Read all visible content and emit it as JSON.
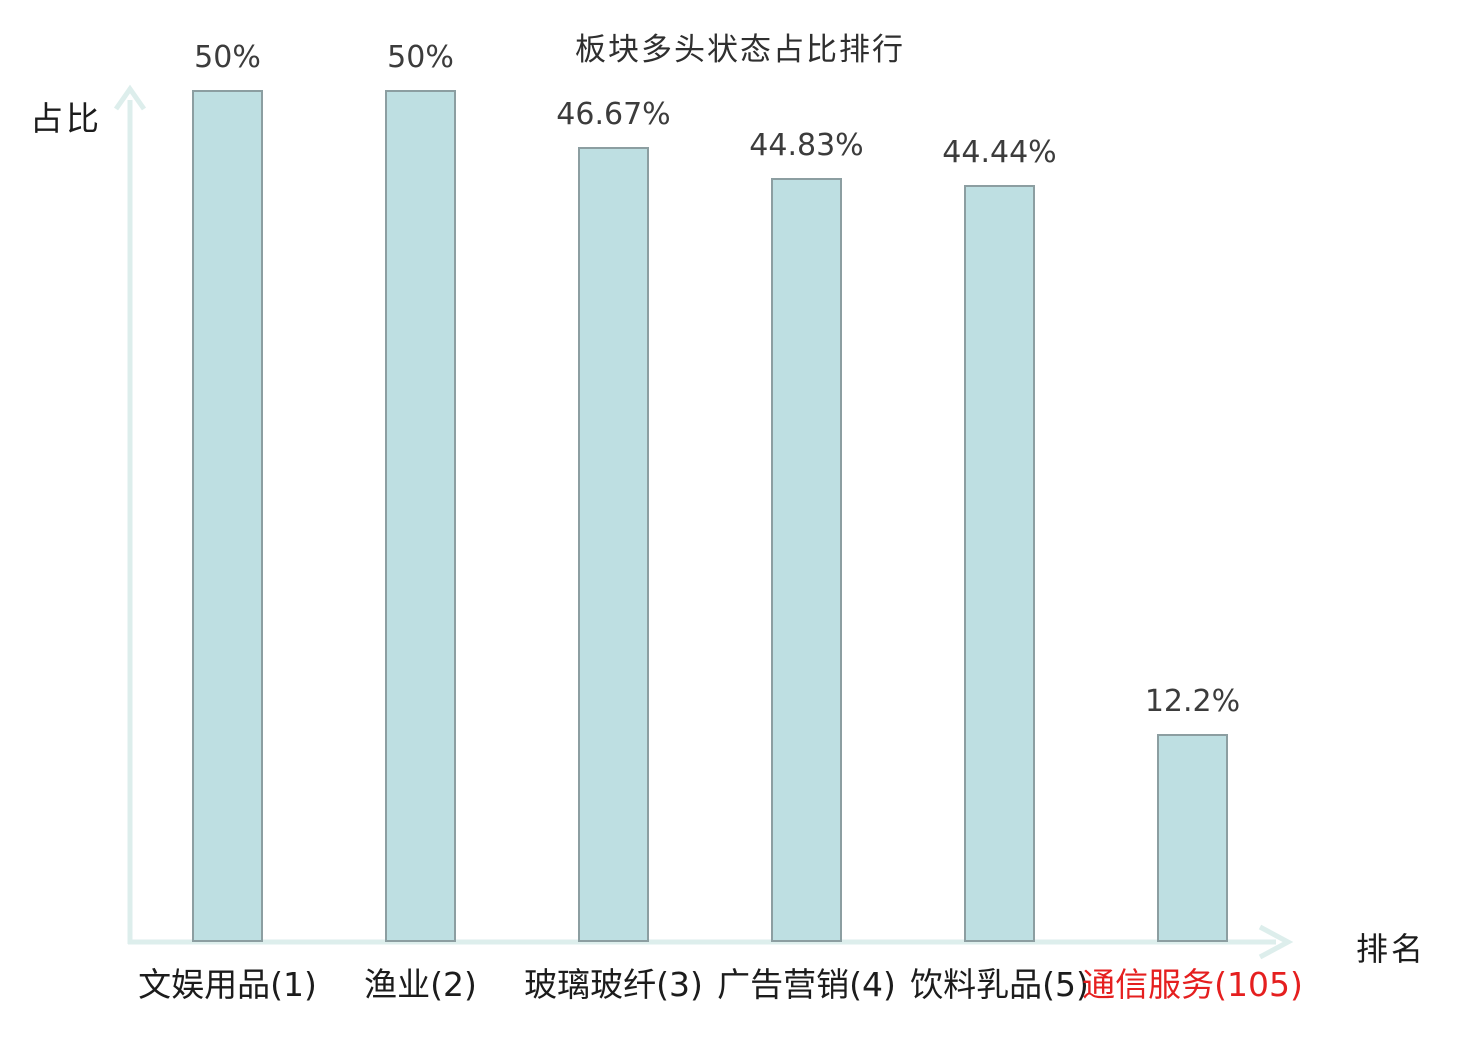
{
  "chart_data": {
    "type": "bar",
    "title": "板块多头状态占比排行",
    "xlabel": "排名",
    "ylabel": "占比",
    "categories": [
      "文娱用品(1)",
      "渔业(2)",
      "玻璃玻纤(3)",
      "广告营销(4)",
      "饮料乳品(5)",
      "通信服务(105)"
    ],
    "values": [
      50,
      50,
      46.67,
      44.83,
      44.44,
      12.2
    ],
    "value_labels": [
      "50%",
      "50%",
      "46.67%",
      "44.83%",
      "44.44%",
      "12.2%"
    ],
    "highlight_index": 5,
    "ylim": [
      0,
      50
    ],
    "grid": false,
    "legend": null,
    "colors": {
      "bar_fill": "#bedfe2",
      "bar_border": "#8c9ea1",
      "axis": "#ddeeec",
      "title_text": "#2f2f2f",
      "value_text": "#3c3c3c",
      "category_text": "#1c1c1c",
      "highlight_text": "#e51f1f"
    }
  }
}
